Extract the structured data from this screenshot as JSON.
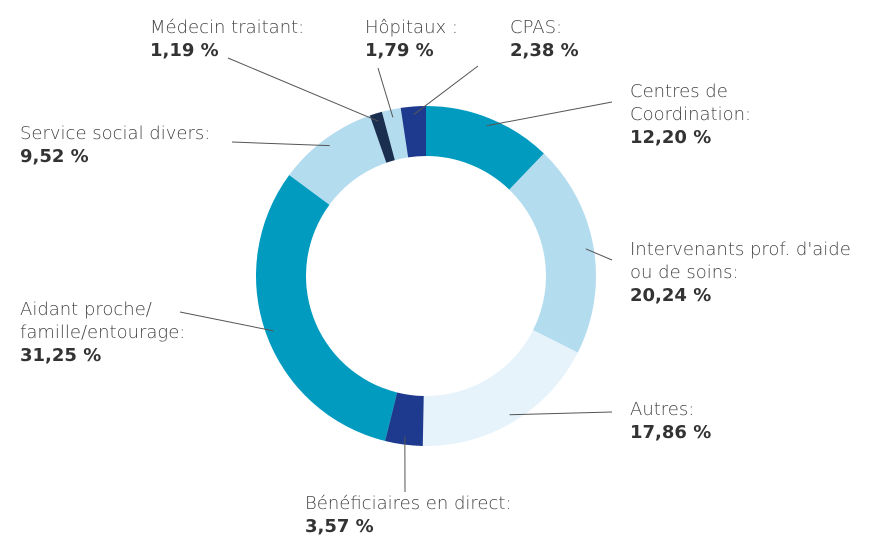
{
  "chart_data": {
    "type": "donut",
    "categories": [
      "Centres de\nCoordination:",
      "Intervenants prof. d'aide\nou de soins:",
      "Autres:",
      "Bénéficiaires en direct:",
      "Aidant proche/\nfamille/entourage:",
      "Service social divers:",
      "Médecin traitant:",
      "Hôpitaux :",
      "CPAS:"
    ],
    "values": [
      12.2,
      20.24,
      17.86,
      3.57,
      31.25,
      9.52,
      1.19,
      1.79,
      2.38
    ],
    "value_labels": [
      "12,20 %",
      "20,24 %",
      "17,86 %",
      "3,57 %",
      "31,25 %",
      "9,52 %",
      "1,19 %",
      "1,79 %",
      "2,38 %"
    ],
    "colors": [
      "#009bbf",
      "#b4dcef",
      "#e6f3fb",
      "#1e3a8f",
      "#009bbf",
      "#b4dcef",
      "#1a2e50",
      "#b4dcef",
      "#1e3a8f"
    ]
  }
}
